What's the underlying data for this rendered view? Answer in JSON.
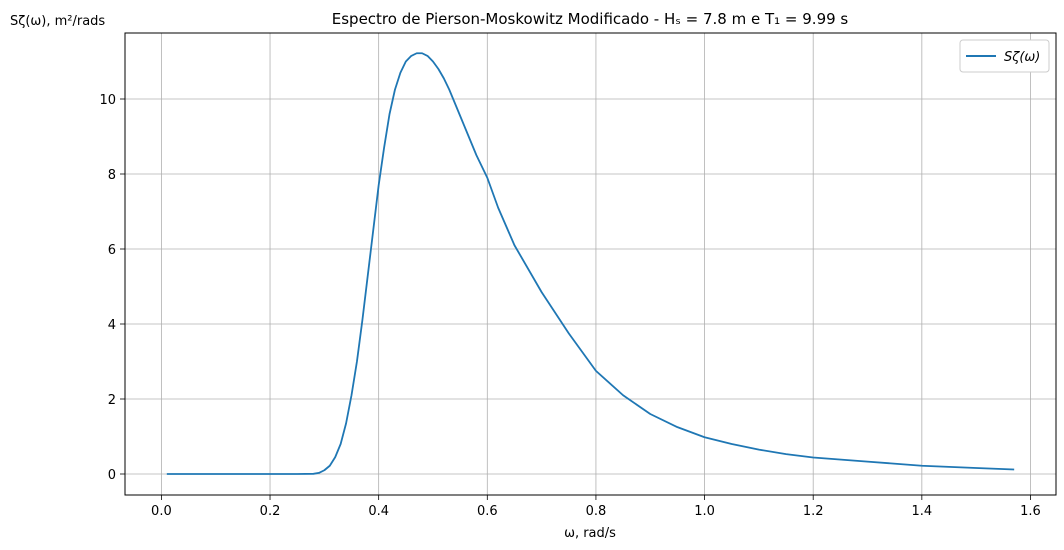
{
  "chart_data": {
    "type": "line",
    "title": "Espectro de Pierson-Moskowitz Modificado - Hₛ = 7.8 m e T₁ = 9.99 s",
    "xlabel": "ω, rad/s",
    "ylabel": "Sζ(ω), m²/rads",
    "xlim": [
      -0.067,
      1.647
    ],
    "ylim": [
      -0.56,
      11.76
    ],
    "x_ticks": [
      0.0,
      0.2,
      0.4,
      0.6,
      0.8,
      1.0,
      1.2,
      1.4,
      1.6
    ],
    "x_tick_labels": [
      "0.0",
      "0.2",
      "0.4",
      "0.6",
      "0.8",
      "1.0",
      "1.2",
      "1.4",
      "1.6"
    ],
    "y_ticks": [
      0,
      2,
      4,
      6,
      8,
      10
    ],
    "y_tick_labels": [
      "0",
      "2",
      "4",
      "6",
      "8",
      "10"
    ],
    "grid": true,
    "legend_position": "top-right",
    "color": "#1f77b4",
    "series": [
      {
        "name": "Sζ(ω)",
        "x": [
          0.01,
          0.05,
          0.1,
          0.15,
          0.2,
          0.25,
          0.28,
          0.29,
          0.3,
          0.31,
          0.32,
          0.33,
          0.34,
          0.35,
          0.36,
          0.37,
          0.38,
          0.39,
          0.4,
          0.41,
          0.42,
          0.43,
          0.44,
          0.45,
          0.46,
          0.47,
          0.48,
          0.49,
          0.5,
          0.51,
          0.52,
          0.53,
          0.54,
          0.55,
          0.56,
          0.58,
          0.6,
          0.62,
          0.65,
          0.7,
          0.75,
          0.8,
          0.85,
          0.9,
          0.95,
          1.0,
          1.05,
          1.1,
          1.15,
          1.2,
          1.3,
          1.4,
          1.5,
          1.57
        ],
        "y": [
          0,
          0,
          0,
          0,
          0,
          0,
          0.005,
          0.03,
          0.1,
          0.22,
          0.45,
          0.8,
          1.35,
          2.1,
          3.0,
          4.1,
          5.3,
          6.5,
          7.7,
          8.7,
          9.6,
          10.25,
          10.7,
          11.0,
          11.15,
          11.22,
          11.22,
          11.15,
          11.0,
          10.8,
          10.55,
          10.25,
          9.9,
          9.55,
          9.2,
          8.5,
          7.9,
          7.1,
          6.1,
          4.85,
          3.75,
          2.75,
          2.1,
          1.6,
          1.25,
          0.98,
          0.8,
          0.65,
          0.53,
          0.44,
          0.33,
          0.22,
          0.16,
          0.12
        ]
      }
    ]
  }
}
